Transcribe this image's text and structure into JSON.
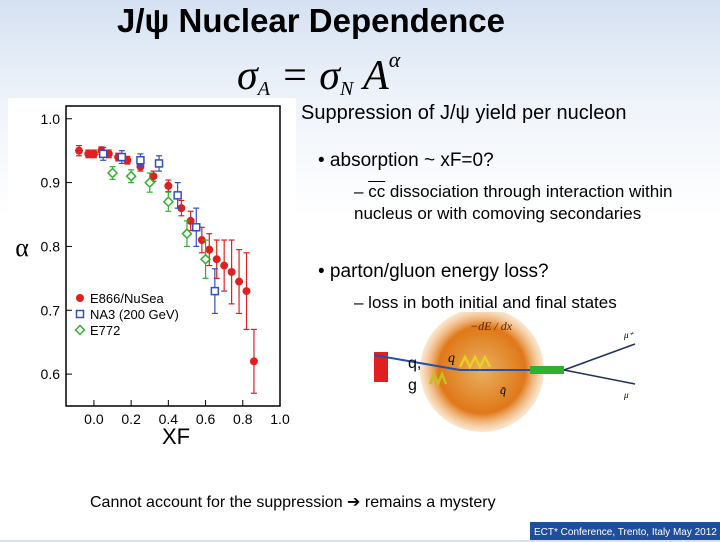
{
  "slide": {
    "title": "J/ψ Nuclear Dependence",
    "formula": {
      "lhs": "σ",
      "lhs_sub": "A",
      "eq": " = ",
      "rhs": "σ",
      "rhs_sub": "N",
      "rhs_base": " A",
      "rhs_sup": "α"
    },
    "heading": "Suppression of J/ψ yield per nucleon",
    "bullet1": "• absorption ~ xF=0?",
    "bullet1_detail_dash": "– ",
    "bullet1_detail_cc": "cc",
    "bullet1_detail_rest": " dissociation through interaction within nucleus or with comoving secondaries",
    "bullet2": "• parton/gluon energy loss?",
    "bullet2_detail": "– loss in both initial and final states",
    "footer": "Cannot account for the suppression ➔ remains a mystery",
    "conference": "ECT* Conference, Trento, Italy May 2012",
    "diagram": {
      "qg_label_1": "q,",
      "qg_label_2": "g",
      "de_label": "−dE / dx",
      "q_label": "q",
      "qbar_label": "q̄",
      "mu_label_top": "μ⁺",
      "mu_label_bottom": "μ"
    }
  },
  "chart_data": {
    "type": "scatter",
    "title": "",
    "xlabel": "XF",
    "ylabel": "α",
    "xlim": [
      -0.15,
      1.0
    ],
    "ylim": [
      0.55,
      1.02
    ],
    "xticks": [
      0.0,
      0.2,
      0.4,
      0.6,
      0.8,
      1.0
    ],
    "xtick_labels": [
      "0.0",
      "0.2",
      "0.4",
      "0.6",
      "0.8",
      "1.0"
    ],
    "yticks": [
      0.6,
      0.7,
      0.8,
      0.9,
      1.0
    ],
    "ytick_labels": [
      "0.6",
      "0.7",
      "0.8",
      "0.9",
      "1.0"
    ],
    "legend_position": "bottom-left",
    "series": [
      {
        "name": "E866/NuSea",
        "color": "#e02020",
        "marker": "circle",
        "x": [
          -0.08,
          -0.03,
          0.0,
          0.04,
          0.08,
          0.13,
          0.18,
          0.25,
          0.32,
          0.4,
          0.47,
          0.52,
          0.58,
          0.62,
          0.66,
          0.7,
          0.74,
          0.78,
          0.82,
          0.86
        ],
        "y": [
          0.95,
          0.945,
          0.945,
          0.95,
          0.945,
          0.94,
          0.935,
          0.925,
          0.91,
          0.895,
          0.86,
          0.84,
          0.81,
          0.795,
          0.78,
          0.77,
          0.76,
          0.745,
          0.73,
          0.62
        ],
        "err": [
          0.008,
          0.006,
          0.006,
          0.006,
          0.006,
          0.006,
          0.006,
          0.007,
          0.008,
          0.009,
          0.012,
          0.015,
          0.02,
          0.025,
          0.03,
          0.04,
          0.05,
          0.05,
          0.06,
          0.05
        ]
      },
      {
        "name": "NA3 (200 GeV)",
        "color": "#3050c0",
        "marker": "square",
        "x": [
          0.05,
          0.15,
          0.25,
          0.35,
          0.45,
          0.55,
          0.65
        ],
        "y": [
          0.945,
          0.94,
          0.935,
          0.93,
          0.88,
          0.83,
          0.73
        ],
        "err": [
          0.01,
          0.01,
          0.01,
          0.012,
          0.02,
          0.03,
          0.035
        ]
      },
      {
        "name": "E772",
        "color": "#30b030",
        "marker": "diamond",
        "x": [
          0.1,
          0.2,
          0.3,
          0.4,
          0.5,
          0.6
        ],
        "y": [
          0.915,
          0.91,
          0.9,
          0.87,
          0.82,
          0.78
        ],
        "err": [
          0.01,
          0.01,
          0.015,
          0.015,
          0.02,
          0.03
        ]
      }
    ]
  }
}
